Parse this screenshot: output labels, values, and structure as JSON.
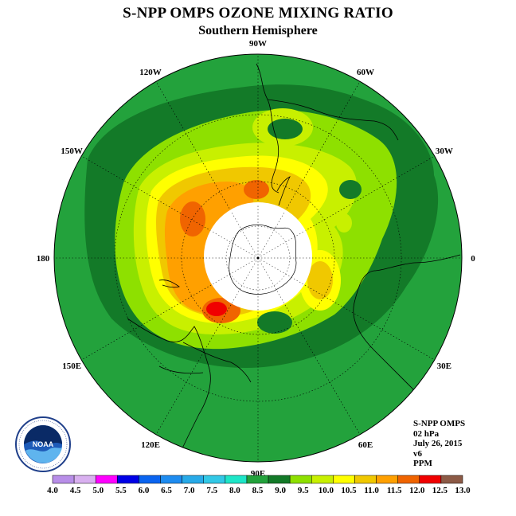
{
  "title": "S-NPP OMPS OZONE MIXING RATIO",
  "subtitle": "Southern Hemisphere",
  "longitude_labels": [
    {
      "text": "90W",
      "lon": -90
    },
    {
      "text": "60W",
      "lon": -60
    },
    {
      "text": "30W",
      "lon": -30
    },
    {
      "text": "0",
      "lon": 0
    },
    {
      "text": "30E",
      "lon": 30
    },
    {
      "text": "60E",
      "lon": 60
    },
    {
      "text": "90E",
      "lon": 90
    },
    {
      "text": "120E",
      "lon": 120
    },
    {
      "text": "150E",
      "lon": 150
    },
    {
      "text": "180",
      "lon": 180
    },
    {
      "text": "150W",
      "lon": -150
    },
    {
      "text": "120W",
      "lon": -120
    }
  ],
  "info": {
    "instrument": "S-NPP OMPS",
    "level": "02 hPa",
    "date": "July 26, 2015",
    "version": "v6",
    "units": "PPM"
  },
  "logo": {
    "text": "NOAA",
    "icon": "noaa-logo-icon"
  },
  "colorbar": {
    "ticks": [
      "4.0",
      "4.5",
      "5.0",
      "5.5",
      "6.0",
      "6.5",
      "7.0",
      "7.5",
      "8.0",
      "8.5",
      "9.0",
      "9.5",
      "10.0",
      "10.5",
      "11.0",
      "11.5",
      "12.0",
      "12.5",
      "13.0"
    ],
    "colors": [
      "#b88ee8",
      "#d9b0f0",
      "#ff00ff",
      "#0000e6",
      "#0a64f0",
      "#1e8cf0",
      "#28aae8",
      "#32c8e6",
      "#1ee6c8",
      "#23a23c",
      "#137a28",
      "#8ee000",
      "#c8f000",
      "#ffff00",
      "#f0c800",
      "#ffa000",
      "#f06400",
      "#f00000",
      "#8c5a46"
    ]
  },
  "chart_data": {
    "type": "heatmap",
    "projection": "south-polar-stereographic",
    "variable": "ozone mixing ratio",
    "units": "PPM",
    "level": "02 hPa",
    "date": "July 26, 2015",
    "value_range": [
      4.0,
      13.0
    ],
    "background_level": [
      8.5,
      9.0
    ],
    "features": [
      {
        "desc": "polar night no-data region",
        "center_lat": -90
      },
      {
        "desc": "ozone maximum >12.0 ppm",
        "approx_lon": 140,
        "approx_lat": -62
      },
      {
        "desc": "high 11.0-11.5 ppm region",
        "approx_lon": -150,
        "approx_lat": -60
      },
      {
        "desc": "high 11.0-11.5 ppm over Antarctic Peninsula",
        "approx_lon": -60,
        "approx_lat": -62
      },
      {
        "desc": "secondary maximum 10.5-11.0 ppm",
        "approx_lon": 70,
        "approx_lat": -62
      }
    ]
  }
}
